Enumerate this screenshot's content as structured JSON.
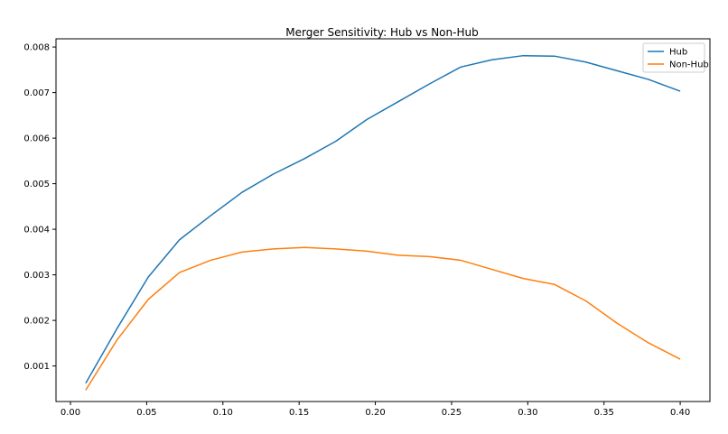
{
  "chart_data": {
    "type": "line",
    "title": "Merger Sensitivity: Hub vs Non-Hub",
    "xlabel": "",
    "ylabel": "",
    "xlim": [
      -0.0095,
      0.4195
    ],
    "ylim": [
      0.00022,
      0.00818
    ],
    "x_ticks": [
      0.0,
      0.05,
      0.1,
      0.15,
      0.2,
      0.25,
      0.3,
      0.35,
      0.4
    ],
    "x_tick_labels": [
      "0.00",
      "0.05",
      "0.10",
      "0.15",
      "0.20",
      "0.25",
      "0.30",
      "0.35",
      "0.40"
    ],
    "y_ticks": [
      0.001,
      0.002,
      0.003,
      0.004,
      0.005,
      0.006,
      0.007,
      0.008
    ],
    "y_tick_labels": [
      "0.001",
      "0.002",
      "0.003",
      "0.004",
      "0.005",
      "0.006",
      "0.007",
      "0.008"
    ],
    "grid": false,
    "legend_position": "top-right",
    "x": [
      0.01,
      0.0305,
      0.051,
      0.0715,
      0.092,
      0.1125,
      0.133,
      0.1535,
      0.174,
      0.1945,
      0.215,
      0.2355,
      0.256,
      0.2765,
      0.297,
      0.3175,
      0.338,
      0.3585,
      0.379,
      0.4
    ],
    "series": [
      {
        "name": "Hub",
        "color": "#1f77b4",
        "values": [
          0.00062,
          0.00182,
          0.00295,
          0.00377,
          0.0043,
          0.00481,
          0.00521,
          0.00555,
          0.00593,
          0.00641,
          0.0068,
          0.00719,
          0.00756,
          0.00772,
          0.00781,
          0.0078,
          0.00767,
          0.00748,
          0.00729,
          0.00703
        ]
      },
      {
        "name": "Non-Hub",
        "color": "#ff7f0e",
        "values": [
          0.00047,
          0.00157,
          0.00246,
          0.00305,
          0.00332,
          0.0035,
          0.00357,
          0.0036,
          0.00357,
          0.00352,
          0.00343,
          0.0034,
          0.00332,
          0.00312,
          0.00292,
          0.00279,
          0.00243,
          0.00194,
          0.00151,
          0.00115
        ]
      }
    ]
  }
}
